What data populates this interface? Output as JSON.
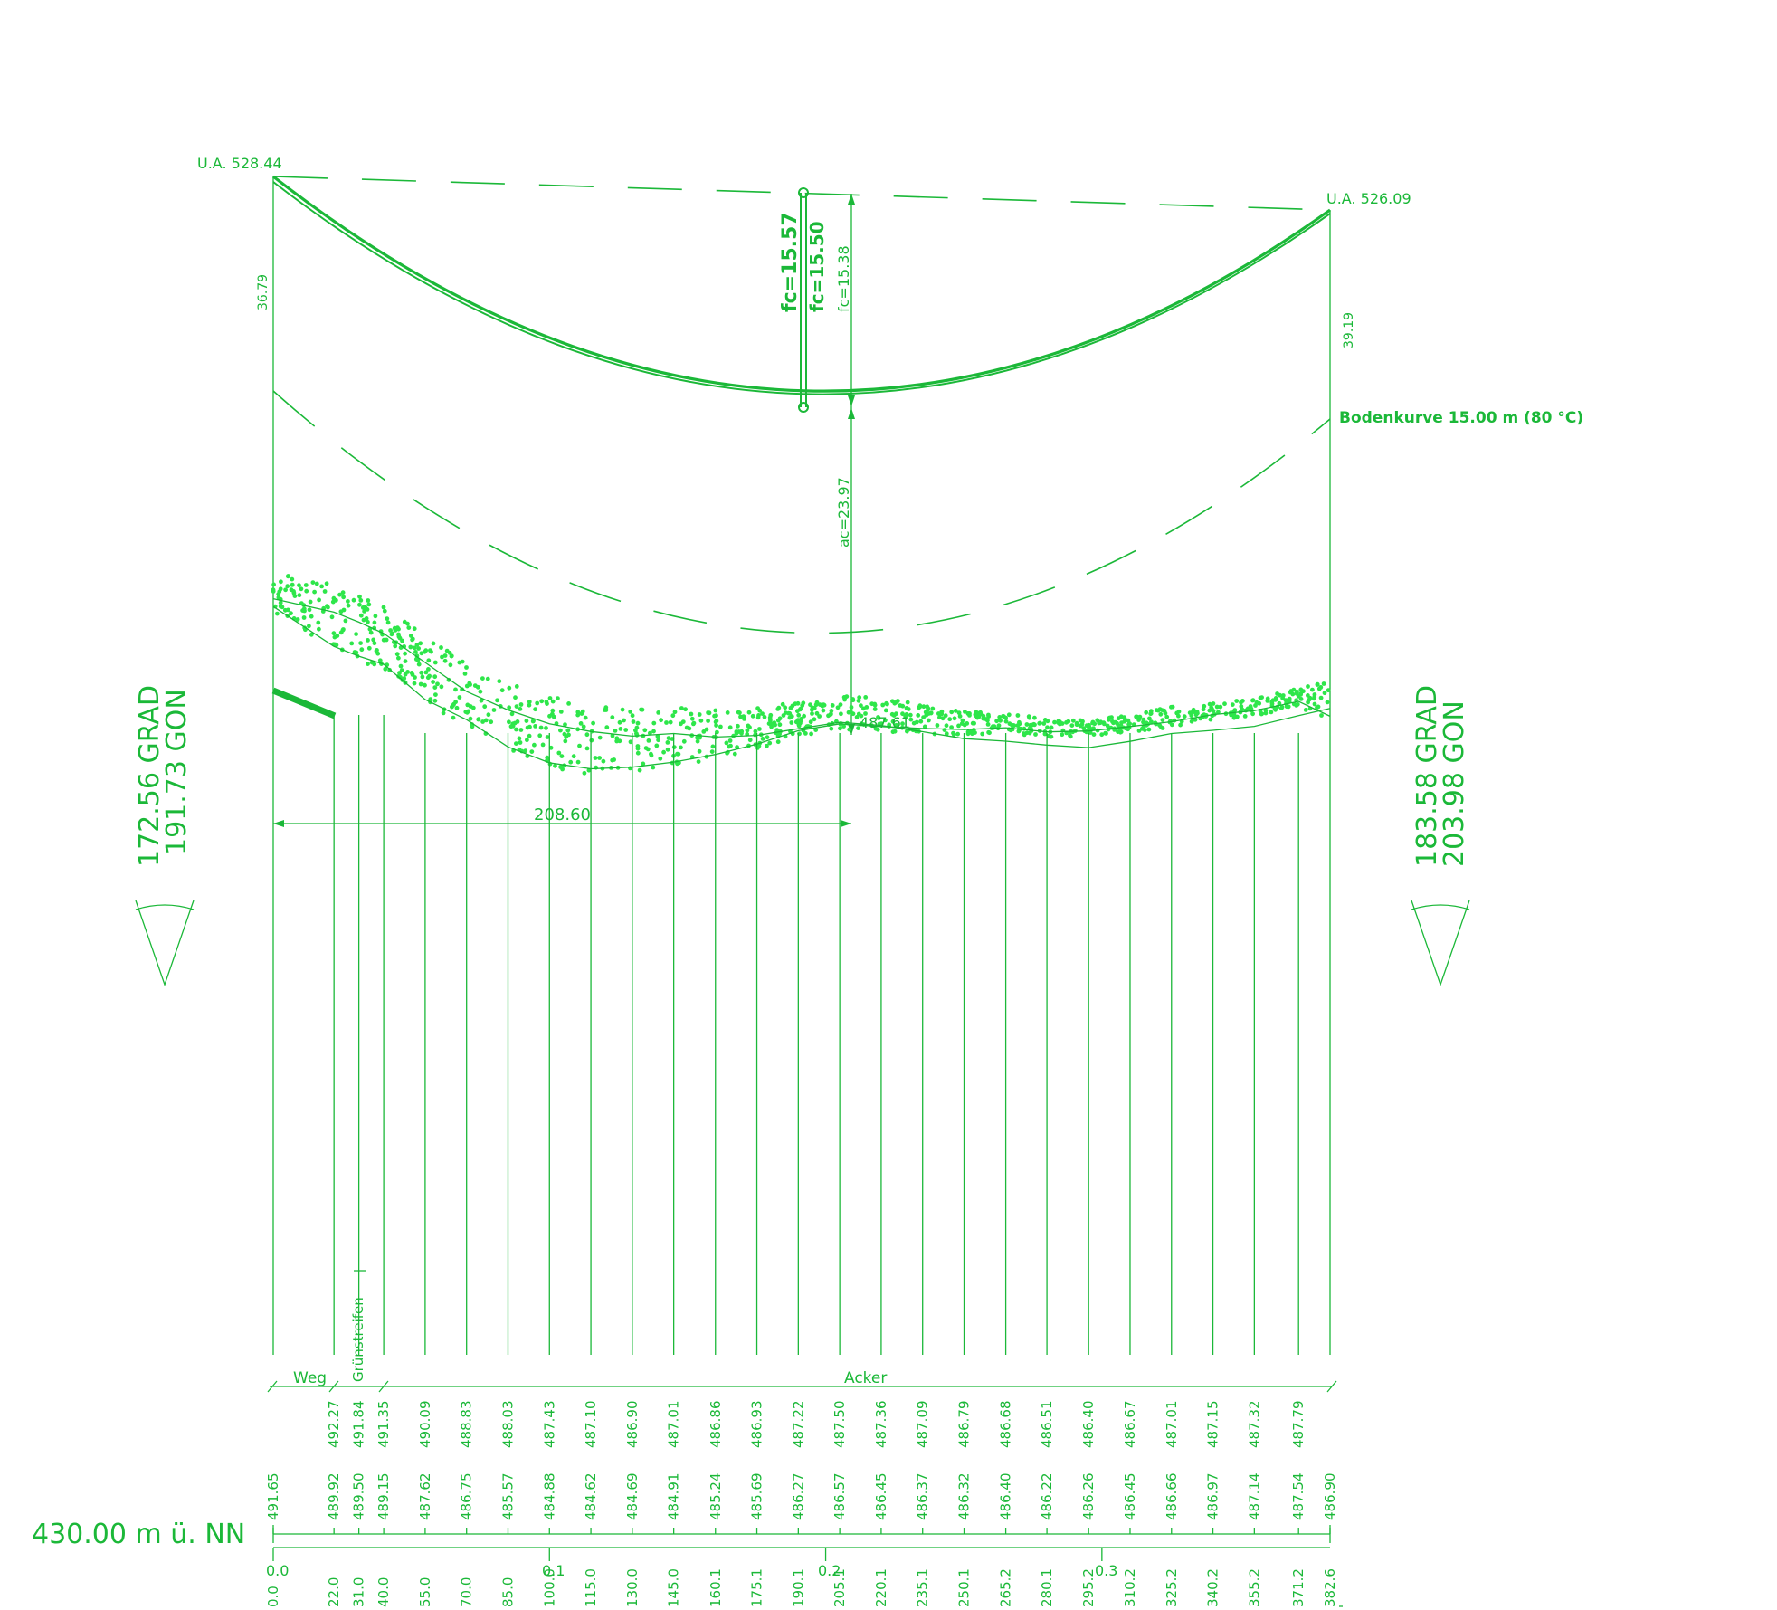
{
  "top_left_label": "U.A. 528.44",
  "top_right_label": "U.A. 526.09",
  "left_height": "36.79",
  "right_height": "39.19",
  "sag_labels": [
    "fc=15.57",
    "fc=15.50",
    "fc=15.38"
  ],
  "ground_clearance": "ac=23.97",
  "ground_point_label": "487.61",
  "bodenkurve_label": "Bodenkurve 15.00 m (80 °C)",
  "span_dimension": "208.60",
  "left_angle": {
    "grad": "172.56 GRAD",
    "gon": "191.73 GON"
  },
  "right_angle": {
    "grad": "183.58 GRAD",
    "gon": "203.98 GON"
  },
  "datum_label": "430.00 m ü. NN",
  "land_use": [
    "Weg",
    "Grünstreifen",
    "Acker"
  ],
  "km_marks": [
    "0.0",
    "0.1",
    "0.2",
    "0.3"
  ],
  "stations": [
    "0.0",
    "22.0",
    "31.0",
    "40.0",
    "55.0",
    "70.0",
    "85.0",
    "100.0",
    "115.0",
    "130.0",
    "145.0",
    "160.1",
    "175.1",
    "190.1",
    "205.1",
    "220.1",
    "235.1",
    "250.1",
    "265.2",
    "280.1",
    "295.2",
    "310.2",
    "325.2",
    "340.2",
    "355.2",
    "371.2",
    "382.6"
  ],
  "elev_upper": [
    "",
    "492.27",
    "491.84",
    "491.35",
    "490.09",
    "488.83",
    "488.03",
    "487.43",
    "487.10",
    "486.90",
    "487.01",
    "486.86",
    "486.93",
    "487.22",
    "487.50",
    "487.36",
    "487.09",
    "486.79",
    "486.68",
    "486.51",
    "486.40",
    "486.67",
    "487.01",
    "487.15",
    "487.32",
    "487.79",
    ""
  ],
  "elev_lower": [
    "491.65",
    "489.92",
    "489.50",
    "489.15",
    "487.62",
    "486.75",
    "485.57",
    "484.88",
    "484.62",
    "484.69",
    "484.91",
    "485.24",
    "485.69",
    "486.27",
    "486.57",
    "486.45",
    "486.37",
    "486.32",
    "486.40",
    "486.22",
    "486.26",
    "486.45",
    "486.66",
    "486.97",
    "487.14",
    "487.54",
    "486.90"
  ]
}
